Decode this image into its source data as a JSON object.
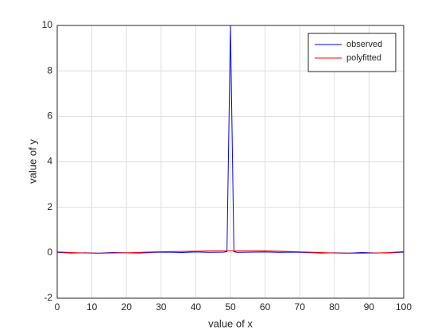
{
  "chart_data": {
    "type": "line",
    "x_label": "value of x",
    "y_label": "value of y",
    "x": [
      0,
      4,
      8,
      12,
      16,
      20,
      24,
      28,
      32,
      36,
      40,
      44,
      48,
      49,
      50,
      51,
      52,
      56,
      60,
      64,
      68,
      72,
      76,
      80,
      84,
      88,
      92,
      96,
      100
    ],
    "series": [
      {
        "name": "observed",
        "color": "#0000ff",
        "values": [
          0.02,
          -0.01,
          0.0,
          -0.02,
          0.01,
          0.0,
          -0.01,
          0.02,
          0.03,
          0.01,
          0.04,
          0.02,
          0.03,
          0.05,
          10,
          0.05,
          0.02,
          0.03,
          0.04,
          0.02,
          0.03,
          0.01,
          -0.01,
          0.0,
          -0.02,
          0.01,
          -0.01,
          0.0,
          0.03
        ]
      },
      {
        "name": "polyfitted",
        "color": "#ff0000",
        "values": [
          0.04,
          0.01,
          -0.01,
          -0.02,
          -0.01,
          0.0,
          0.02,
          0.04,
          0.05,
          0.06,
          0.07,
          0.08,
          0.08,
          0.08,
          0.08,
          0.08,
          0.08,
          0.08,
          0.08,
          0.07,
          0.05,
          0.03,
          0.01,
          -0.01,
          -0.02,
          -0.02,
          -0.01,
          0.01,
          0.05
        ]
      }
    ],
    "xlim": [
      0,
      100
    ],
    "ylim": [
      -2,
      10
    ],
    "xticks": [
      0,
      10,
      20,
      30,
      40,
      50,
      60,
      70,
      80,
      90,
      100
    ],
    "yticks": [
      -2,
      0,
      2,
      4,
      6,
      8,
      10
    ],
    "grid": true,
    "legend": "northeast"
  }
}
